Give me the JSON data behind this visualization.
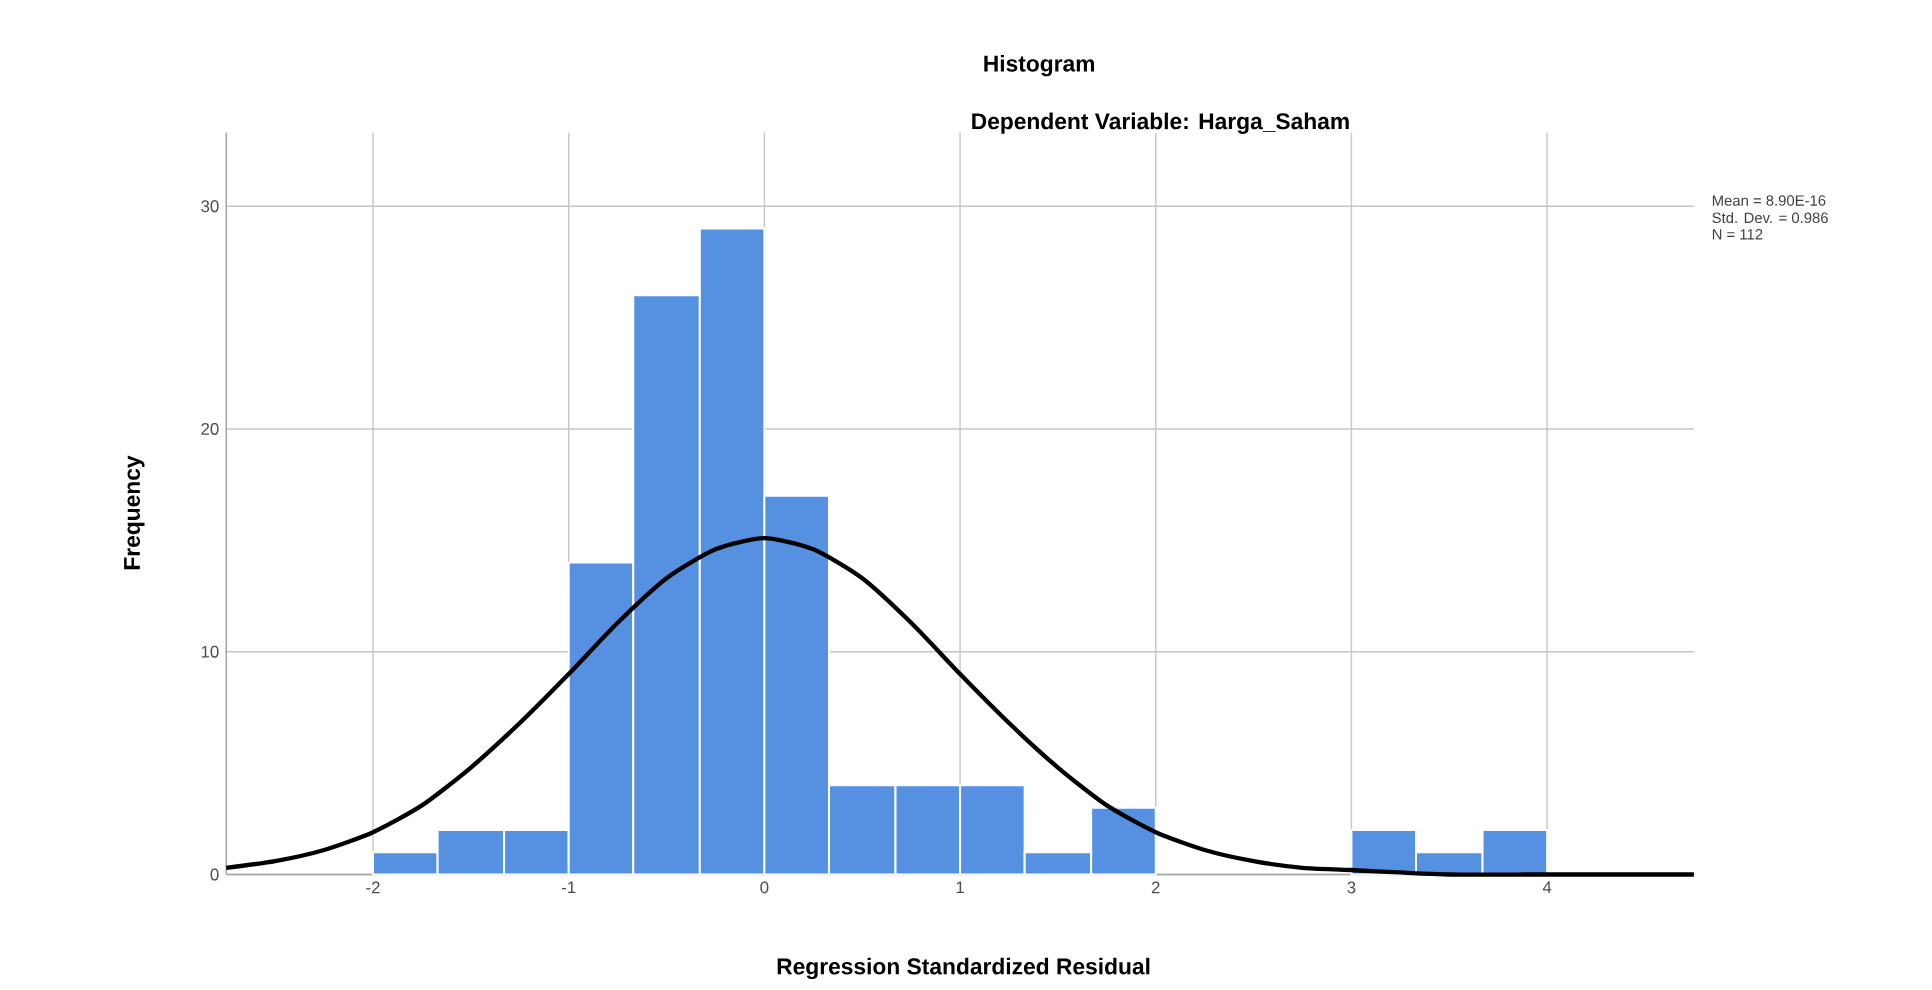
{
  "chart_data": {
    "type": "histogram",
    "title": "Histogram",
    "subtitle": "Dependent Variable: Harga_Saham",
    "xlabel": "Regression Standardized Residual",
    "ylabel": "Frequency",
    "bins": [
      -2,
      -1.67,
      -1.33,
      -1,
      -0.67,
      -0.33,
      0,
      0.33,
      0.67,
      1,
      1.33,
      1.67,
      2,
      3,
      3.33,
      3.67,
      4
    ],
    "values": [
      1,
      2,
      2,
      14,
      26,
      29,
      17,
      4,
      4,
      4,
      1,
      3,
      0,
      2,
      1,
      2
    ],
    "color": "#5591e0",
    "series": [
      {
        "type": "line",
        "color": "#000000",
        "x": [
          -2.75,
          -2.5,
          -2.25,
          -2,
          -1.75,
          -1.5,
          -1.25,
          -1,
          -0.75,
          -0.5,
          -0.25,
          0,
          0.25,
          0.5,
          0.75,
          1,
          1.25,
          1.5,
          1.75,
          2,
          2.25,
          2.5,
          2.75,
          3,
          3.5,
          4,
          4.75
        ],
        "values": [
          0.3,
          0.6,
          1.1,
          1.9,
          3.1,
          4.8,
          6.8,
          9.0,
          11.3,
          13.3,
          14.6,
          15.1,
          14.6,
          13.3,
          11.3,
          9.0,
          6.8,
          4.8,
          3.1,
          1.9,
          1.1,
          0.6,
          0.3,
          0.2,
          0,
          0,
          0
        ]
      }
    ],
    "annotations": [
      "Mean = 8.90E-16",
      "Std. Dev. = 0.986",
      "N = 112"
    ],
    "xlim": [
      -2.75,
      4.75
    ],
    "ylim": [
      0,
      33.3
    ],
    "xticks": [
      -2,
      -1,
      0,
      1,
      2,
      3,
      4
    ],
    "yticks": [
      0,
      10,
      20,
      30
    ],
    "grid": true
  }
}
